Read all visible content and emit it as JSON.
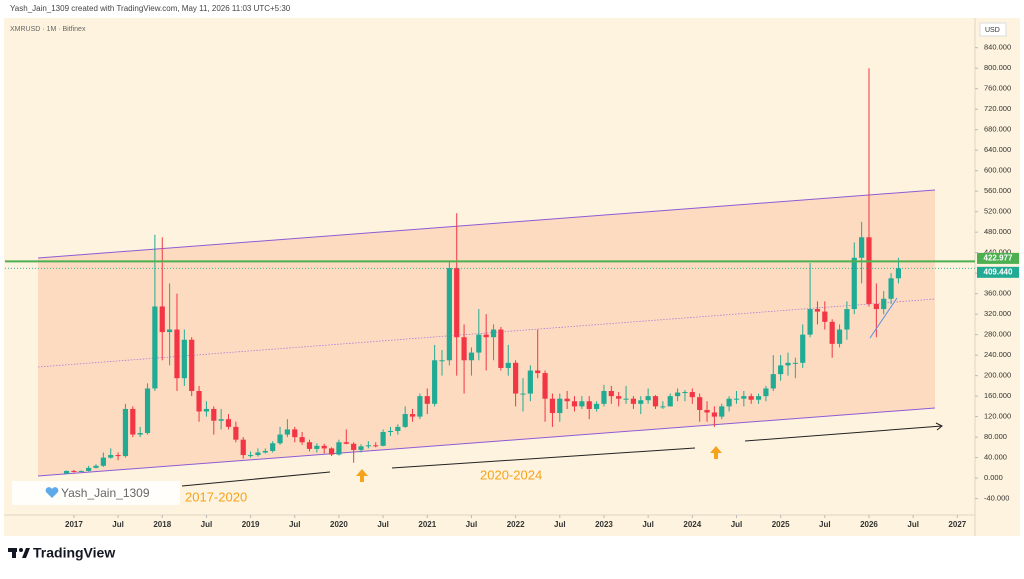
{
  "header": {
    "credit": "Yash_Jain_1309 created with TradingView.com, May 11, 2026 11:03 UTC+5:30",
    "symbol": "XMRUSD · 1M · Bitfinex"
  },
  "chart_data": {
    "type": "candlestick",
    "x": [
      "2016-12",
      "2017-01",
      "2017-02",
      "2017-03",
      "2017-04",
      "2017-05",
      "2017-06",
      "2017-07",
      "2017-08",
      "2017-09",
      "2017-10",
      "2017-11",
      "2017-12",
      "2018-01",
      "2018-02",
      "2018-03",
      "2018-04",
      "2018-05",
      "2018-06",
      "2018-07",
      "2018-08",
      "2018-09",
      "2018-10",
      "2018-11",
      "2018-12",
      "2019-01",
      "2019-02",
      "2019-03",
      "2019-04",
      "2019-05",
      "2019-06",
      "2019-07",
      "2019-08",
      "2019-09",
      "2019-10",
      "2019-11",
      "2019-12",
      "2020-01",
      "2020-02",
      "2020-03",
      "2020-04",
      "2020-05",
      "2020-06",
      "2020-07",
      "2020-08",
      "2020-09",
      "2020-10",
      "2020-11",
      "2020-12",
      "2021-01",
      "2021-02",
      "2021-03",
      "2021-04",
      "2021-05",
      "2021-06",
      "2021-07",
      "2021-08",
      "2021-09",
      "2021-10",
      "2021-11",
      "2021-12",
      "2022-01",
      "2022-02",
      "2022-03",
      "2022-04",
      "2022-05",
      "2022-06",
      "2022-07",
      "2022-08",
      "2022-09",
      "2022-10",
      "2022-11",
      "2022-12",
      "2023-01",
      "2023-02",
      "2023-03",
      "2023-04",
      "2023-05",
      "2023-06",
      "2023-07",
      "2023-08",
      "2023-09",
      "2023-10",
      "2023-11",
      "2023-12",
      "2024-01",
      "2024-02",
      "2024-03",
      "2024-04",
      "2024-05",
      "2024-06",
      "2024-07",
      "2024-08",
      "2024-09",
      "2024-10",
      "2024-11",
      "2024-12",
      "2025-01",
      "2025-02",
      "2025-03",
      "2025-04",
      "2025-05",
      "2025-06",
      "2025-07",
      "2025-08",
      "2025-09",
      "2025-10",
      "2025-11",
      "2025-12",
      "2026-01",
      "2026-02",
      "2026-03",
      "2026-04",
      "2026-05"
    ],
    "open": [
      9,
      14,
      13,
      14,
      20,
      24,
      40,
      45,
      43,
      135,
      85,
      88,
      175,
      335,
      285,
      290,
      195,
      270,
      170,
      130,
      135,
      112,
      115,
      100,
      75,
      45,
      45,
      50,
      53,
      68,
      85,
      95,
      80,
      70,
      57,
      63,
      58,
      46,
      70,
      67,
      55,
      62,
      64,
      63,
      90,
      92,
      100,
      125,
      120,
      160,
      145,
      230,
      230,
      410,
      275,
      230,
      245,
      280,
      275,
      290,
      215,
      225,
      165,
      165,
      210,
      205,
      155,
      127,
      155,
      150,
      140,
      150,
      135,
      145,
      170,
      160,
      155,
      155,
      145,
      152,
      160,
      140,
      140,
      160,
      167,
      168,
      158,
      133,
      128,
      120,
      140,
      155,
      155,
      160,
      153,
      160,
      175,
      203,
      220,
      225,
      225,
      280,
      330,
      325,
      305,
      262,
      290,
      330,
      430,
      470,
      340,
      330,
      350,
      390
    ],
    "high": [
      15,
      16,
      15,
      24,
      27,
      50,
      58,
      50,
      145,
      140,
      100,
      185,
      475,
      470,
      380,
      360,
      290,
      275,
      180,
      150,
      140,
      135,
      125,
      110,
      80,
      52,
      58,
      58,
      72,
      100,
      115,
      100,
      90,
      75,
      68,
      67,
      60,
      75,
      95,
      70,
      66,
      72,
      70,
      95,
      100,
      105,
      140,
      135,
      165,
      175,
      260,
      250,
      425,
      517,
      300,
      255,
      330,
      320,
      300,
      295,
      260,
      230,
      195,
      220,
      290,
      210,
      165,
      165,
      170,
      160,
      160,
      160,
      150,
      182,
      180,
      168,
      180,
      160,
      160,
      175,
      162,
      150,
      165,
      175,
      172,
      175,
      165,
      150,
      140,
      145,
      160,
      170,
      170,
      165,
      165,
      180,
      240,
      240,
      245,
      235,
      300,
      420,
      345,
      345,
      310,
      300,
      345,
      460,
      500,
      800,
      380,
      365,
      400,
      430
    ],
    "low": [
      8,
      11,
      12,
      13,
      19,
      22,
      38,
      35,
      40,
      80,
      80,
      85,
      170,
      230,
      220,
      170,
      180,
      160,
      110,
      120,
      85,
      95,
      95,
      70,
      38,
      40,
      42,
      48,
      50,
      65,
      80,
      70,
      65,
      52,
      50,
      48,
      43,
      44,
      66,
      30,
      50,
      58,
      60,
      62,
      82,
      85,
      98,
      110,
      115,
      125,
      140,
      200,
      220,
      200,
      165,
      200,
      230,
      210,
      230,
      210,
      200,
      140,
      130,
      150,
      195,
      110,
      100,
      110,
      135,
      130,
      135,
      115,
      130,
      140,
      145,
      140,
      145,
      135,
      125,
      145,
      135,
      135,
      140,
      150,
      150,
      145,
      110,
      110,
      100,
      115,
      130,
      145,
      140,
      145,
      145,
      150,
      170,
      190,
      200,
      195,
      215,
      275,
      300,
      290,
      235,
      255,
      270,
      320,
      380,
      335,
      275,
      320,
      340,
      380
    ],
    "close": [
      14,
      13,
      14,
      20,
      24,
      40,
      45,
      43,
      135,
      85,
      88,
      175,
      335,
      285,
      290,
      195,
      270,
      170,
      130,
      135,
      112,
      115,
      100,
      75,
      45,
      45,
      50,
      53,
      68,
      85,
      95,
      80,
      70,
      57,
      63,
      58,
      46,
      70,
      67,
      55,
      62,
      64,
      63,
      90,
      92,
      100,
      125,
      120,
      160,
      145,
      230,
      230,
      410,
      275,
      230,
      245,
      280,
      275,
      290,
      215,
      225,
      165,
      165,
      210,
      205,
      155,
      127,
      155,
      150,
      140,
      150,
      135,
      145,
      170,
      160,
      155,
      155,
      145,
      152,
      160,
      140,
      140,
      160,
      167,
      168,
      158,
      133,
      128,
      120,
      140,
      155,
      155,
      160,
      153,
      160,
      175,
      203,
      220,
      225,
      225,
      280,
      330,
      325,
      305,
      262,
      290,
      330,
      430,
      470,
      340,
      330,
      350,
      390,
      409.44
    ],
    "up_color": "#22ab94",
    "down_color": "#f23645",
    "ylim": [
      -72,
      898
    ],
    "xlim": [
      2016.22,
      2027.2
    ],
    "y_unit": "USD",
    "yticks": [
      {
        "value": -40,
        "label": "-40.000"
      },
      {
        "value": 0,
        "label": "0.000"
      },
      {
        "value": 40,
        "label": "40.000"
      },
      {
        "value": 80,
        "label": "80.000"
      },
      {
        "value": 120,
        "label": "120.000"
      },
      {
        "value": 160,
        "label": "160.000"
      },
      {
        "value": 200,
        "label": "200.000"
      },
      {
        "value": 240,
        "label": "240.000"
      },
      {
        "value": 280,
        "label": "280.000"
      },
      {
        "value": 320,
        "label": "320.000"
      },
      {
        "value": 360,
        "label": "360.000"
      },
      {
        "value": 400,
        "label": "400.000"
      },
      {
        "value": 440,
        "label": "440.000"
      },
      {
        "value": 480,
        "label": "480.000"
      },
      {
        "value": 520,
        "label": "520.000"
      },
      {
        "value": 560,
        "label": "560.000"
      },
      {
        "value": 600,
        "label": "600.000"
      },
      {
        "value": 640,
        "label": "640.000"
      },
      {
        "value": 680,
        "label": "680.000"
      },
      {
        "value": 720,
        "label": "720.000"
      },
      {
        "value": 760,
        "label": "760.000"
      },
      {
        "value": 800,
        "label": "800.000"
      },
      {
        "value": 840,
        "label": "840.000"
      }
    ],
    "xticks": [
      {
        "value": 2017,
        "label": "2017"
      },
      {
        "value": 2017.5,
        "label": "Jul"
      },
      {
        "value": 2018,
        "label": "2018"
      },
      {
        "value": 2018.5,
        "label": "Jul"
      },
      {
        "value": 2019,
        "label": "2019"
      },
      {
        "value": 2019.5,
        "label": "Jul"
      },
      {
        "value": 2020,
        "label": "2020"
      },
      {
        "value": 2020.5,
        "label": "Jul"
      },
      {
        "value": 2021,
        "label": "2021"
      },
      {
        "value": 2021.5,
        "label": "Jul"
      },
      {
        "value": 2022,
        "label": "2022"
      },
      {
        "value": 2022.5,
        "label": "Jul"
      },
      {
        "value": 2023,
        "label": "2023"
      },
      {
        "value": 2023.5,
        "label": "Jul"
      },
      {
        "value": 2024,
        "label": "2024"
      },
      {
        "value": 2024.5,
        "label": "Jul"
      },
      {
        "value": 2025,
        "label": "2025"
      },
      {
        "value": 2025.5,
        "label": "Jul"
      },
      {
        "value": 2026,
        "label": "2026"
      },
      {
        "value": 2026.5,
        "label": "Jul"
      },
      {
        "value": 2027,
        "label": "2027"
      }
    ],
    "price_lines": [
      {
        "value": 422.977,
        "label": "422.977",
        "color": "#4caf50"
      },
      {
        "value": 409.44,
        "label": "409.440",
        "color": "#22ab94"
      }
    ],
    "annotations": [
      "2017-2020",
      "2020-2024"
    ]
  },
  "watermark": "Yash_Jain_1309",
  "footer": "TradingView"
}
